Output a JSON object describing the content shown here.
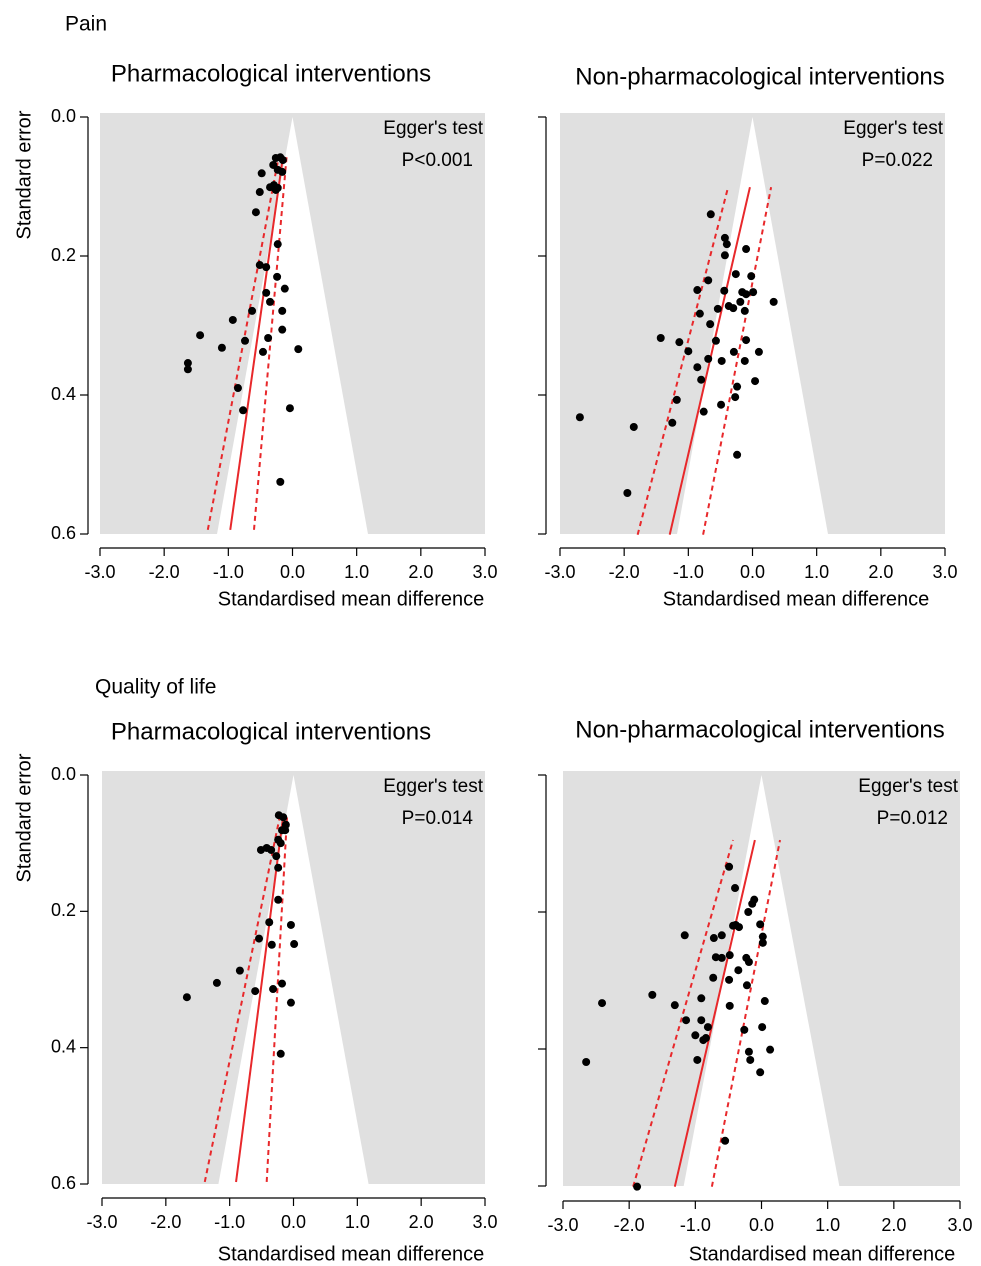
{
  "sections": [
    "Pain",
    "Quality of life"
  ],
  "chart_data": [
    {
      "type": "funnel",
      "section": 0,
      "title": "Pharmacological interventions",
      "xlabel": "Standardised mean difference",
      "ylabel": "Standard error",
      "annotations": [
        "Egger's test",
        "P<0.001"
      ],
      "xlim": [
        -3,
        3
      ],
      "ylim": [
        0,
        0.6
      ],
      "y_inverted": true,
      "ytick_labels": true,
      "xticks": [
        {
          "value": -3,
          "label": "-3.0"
        },
        {
          "value": -2,
          "label": "-2.0"
        },
        {
          "value": -1,
          "label": "-1.0"
        },
        {
          "value": 0,
          "label": "0.0"
        },
        {
          "value": 1,
          "label": "1.0"
        },
        {
          "value": 2,
          "label": "2.0"
        },
        {
          "value": 3,
          "label": "3.0"
        }
      ],
      "yticks": [
        {
          "value": 0,
          "label": "0.0"
        },
        0.2,
        0.4,
        0.6
      ],
      "funnel_center": 0,
      "funnel_z": 1.96,
      "region_color": "#e0e0e0",
      "point_color": "#000000",
      "line_color": "#e8282b",
      "x": [
        -0.26,
        -0.19,
        -0.15,
        -0.3,
        -0.23,
        -0.16,
        -0.48,
        -0.35,
        -0.29,
        -0.23,
        -0.51,
        -0.26,
        -0.57,
        -0.23,
        -0.51,
        -0.41,
        -0.24,
        -0.12,
        -0.41,
        -0.35,
        -0.63,
        -0.16,
        -0.93,
        -0.16,
        -1.44,
        -0.38,
        -0.74,
        -1.1,
        -0.46,
        0.09,
        -1.63,
        -1.63,
        -0.85,
        -0.04,
        -0.77,
        -0.19
      ],
      "y": [
        0.059,
        0.058,
        0.062,
        0.069,
        0.076,
        0.079,
        0.081,
        0.101,
        0.098,
        0.102,
        0.108,
        0.105,
        0.137,
        0.183,
        0.213,
        0.216,
        0.23,
        0.247,
        0.253,
        0.266,
        0.279,
        0.279,
        0.292,
        0.306,
        0.314,
        0.318,
        0.322,
        0.332,
        0.338,
        0.334,
        0.354,
        0.363,
        0.39,
        0.419,
        0.422,
        0.525
      ],
      "fit": {
        "x": [
          -0.97,
          -0.15
        ],
        "y": [
          0.594,
          0.058
        ]
      },
      "ci_lower": {
        "x": [
          -1.32,
          -0.21
        ],
        "y": [
          0.594,
          0.055
        ]
      },
      "ci_upper": {
        "x": [
          -0.6,
          -0.09
        ],
        "y": [
          0.594,
          0.055
        ]
      }
    },
    {
      "type": "funnel",
      "section": 0,
      "title": "Non-pharmacological interventions",
      "xlabel": "Standardised mean difference",
      "annotations": [
        "Egger's test",
        "P=0.022"
      ],
      "xlim": [
        -3,
        3
      ],
      "ylim": [
        0,
        0.6
      ],
      "y_inverted": true,
      "ytick_labels": false,
      "xticks": [
        {
          "value": -3,
          "label": "-3.0"
        },
        {
          "value": -2,
          "label": "-2.0"
        },
        {
          "value": -1,
          "label": "-1.0"
        },
        {
          "value": 0,
          "label": "0.0"
        },
        {
          "value": 1,
          "label": "1.0"
        },
        {
          "value": 2,
          "label": "2.0"
        },
        {
          "value": 3,
          "label": "3.0"
        }
      ],
      "yticks": [
        0,
        0.2,
        0.4,
        0.6
      ],
      "funnel_center": 0,
      "funnel_z": 1.96,
      "region_color": "#e0e0e0",
      "point_color": "#000000",
      "line_color": "#e8282b",
      "x": [
        -0.65,
        -0.43,
        -0.4,
        -0.43,
        -0.69,
        -0.1,
        -0.26,
        -0.44,
        -0.86,
        -0.16,
        -0.1,
        -0.82,
        -0.3,
        -0.54,
        -0.19,
        0.01,
        -0.02,
        0.33,
        -0.37,
        -0.66,
        -0.12,
        -1.43,
        -1.0,
        -1.14,
        -0.57,
        -0.1,
        -0.29,
        0.1,
        -0.69,
        -0.48,
        -0.12,
        -0.86,
        -0.24,
        0.04,
        -0.8,
        -0.27,
        -1.18,
        -0.76,
        -0.49,
        -1.85,
        -1.25,
        -0.24,
        -2.69,
        -1.95
      ],
      "y": [
        0.14,
        0.174,
        0.183,
        0.199,
        0.235,
        0.19,
        0.226,
        0.25,
        0.249,
        0.252,
        0.255,
        0.283,
        0.275,
        0.276,
        0.266,
        0.252,
        0.229,
        0.266,
        0.272,
        0.298,
        0.279,
        0.318,
        0.337,
        0.324,
        0.322,
        0.321,
        0.338,
        0.338,
        0.348,
        0.351,
        0.351,
        0.36,
        0.388,
        0.38,
        0.378,
        0.403,
        0.407,
        0.424,
        0.414,
        0.446,
        0.44,
        0.486,
        0.432,
        0.541
      ],
      "fit": {
        "x": [
          -1.29,
          -0.04
        ],
        "y": [
          0.601,
          0.101
        ]
      },
      "ci_lower": {
        "x": [
          -1.79,
          -0.38
        ],
        "y": [
          0.601,
          0.101
        ]
      },
      "ci_upper": {
        "x": [
          -0.77,
          0.29
        ],
        "y": [
          0.601,
          0.101
        ]
      }
    },
    {
      "type": "funnel",
      "section": 1,
      "title": "Pharmacological interventions",
      "xlabel": "Standardised mean difference",
      "ylabel": "Standard error",
      "annotations": [
        "Egger's test",
        "P=0.014"
      ],
      "xlim": [
        -3,
        3
      ],
      "ylim": [
        0,
        0.6
      ],
      "y_inverted": true,
      "ytick_labels": true,
      "xticks": [
        {
          "value": -3,
          "label": "-3.0"
        },
        {
          "value": -2,
          "label": "-2.0"
        },
        {
          "value": -1,
          "label": "-1.0"
        },
        {
          "value": 0,
          "label": "0.0"
        },
        {
          "value": 1,
          "label": "1.0"
        },
        {
          "value": 2,
          "label": "2.0"
        },
        {
          "value": 3,
          "label": "3.0"
        }
      ],
      "yticks": [
        {
          "value": 0,
          "label": "0.0"
        },
        0.2,
        0.4,
        0.6
      ],
      "funnel_center": 0,
      "funnel_z": 1.96,
      "region_color": "#e0e0e0",
      "point_color": "#000000",
      "line_color": "#e8282b",
      "x": [
        -0.23,
        -0.16,
        -0.12,
        -0.18,
        -0.13,
        -0.24,
        -0.2,
        -0.51,
        -0.42,
        -0.35,
        -0.27,
        -0.24,
        -0.24,
        -0.38,
        -0.04,
        -0.54,
        0.01,
        -0.34,
        -0.84,
        -0.18,
        -1.2,
        -0.32,
        -0.6,
        -1.67,
        -0.04,
        -0.2
      ],
      "y": [
        0.059,
        0.062,
        0.073,
        0.081,
        0.081,
        0.095,
        0.1,
        0.11,
        0.107,
        0.11,
        0.119,
        0.136,
        0.183,
        0.216,
        0.22,
        0.24,
        0.248,
        0.249,
        0.287,
        0.306,
        0.305,
        0.314,
        0.317,
        0.326,
        0.334,
        0.409
      ],
      "fit": {
        "x": [
          -0.9,
          -0.16
        ],
        "y": [
          0.597,
          0.059
        ]
      },
      "ci_lower": {
        "x": [
          -1.39,
          -0.21
        ],
        "y": [
          0.597,
          0.059
        ]
      },
      "ci_upper": {
        "x": [
          -0.42,
          -0.1
        ],
        "y": [
          0.597,
          0.059
        ]
      }
    },
    {
      "type": "funnel",
      "section": 1,
      "title": "Non-pharmacological interventions",
      "xlabel": "Standardised mean difference",
      "annotations": [
        "Egger's test",
        "P=0.012"
      ],
      "xlim": [
        -3,
        3
      ],
      "ylim": [
        0,
        0.6
      ],
      "y_inverted": true,
      "ytick_labels": false,
      "xticks": [
        {
          "value": -3,
          "label": "-3.0"
        },
        {
          "value": -2,
          "label": "-2.0"
        },
        {
          "value": -1,
          "label": "-1.0"
        },
        {
          "value": 0,
          "label": "0.0"
        },
        {
          "value": 1,
          "label": "1.0"
        },
        {
          "value": 2,
          "label": "2.0"
        },
        {
          "value": 3,
          "label": "3.0"
        }
      ],
      "yticks": [
        0,
        0.2,
        0.4,
        0.6
      ],
      "funnel_center": 0,
      "funnel_z": 1.96,
      "region_color": "#e0e0e0",
      "point_color": "#000000",
      "line_color": "#e8282b",
      "x": [
        -0.49,
        -0.4,
        -0.11,
        -0.14,
        -0.72,
        -0.39,
        -0.34,
        -0.2,
        -0.43,
        -0.02,
        0.02,
        0.02,
        -1.16,
        -0.6,
        -0.48,
        -0.69,
        -0.6,
        -0.23,
        -0.19,
        -0.35,
        0.05,
        -0.22,
        -0.49,
        -0.73,
        -1.65,
        -1.31,
        -0.91,
        -0.48,
        -1.14,
        -0.91,
        -0.81,
        -0.26,
        -1.0,
        -0.84,
        0.01,
        -0.88,
        -0.97,
        -0.19,
        0.13,
        -0.17,
        -0.02,
        -2.65,
        -2.41,
        -0.55,
        -1.88
      ],
      "y": [
        0.134,
        0.165,
        0.182,
        0.188,
        0.238,
        0.219,
        0.222,
        0.2,
        0.22,
        0.218,
        0.236,
        0.245,
        0.234,
        0.234,
        0.263,
        0.266,
        0.267,
        0.267,
        0.273,
        0.285,
        0.33,
        0.307,
        0.299,
        0.296,
        0.321,
        0.336,
        0.326,
        0.337,
        0.358,
        0.358,
        0.368,
        0.372,
        0.38,
        0.384,
        0.368,
        0.387,
        0.416,
        0.404,
        0.401,
        0.416,
        0.434,
        0.419,
        0.333,
        0.534,
        0.601
      ],
      "fit": {
        "x": [
          -1.31,
          -0.1
        ],
        "y": [
          0.601,
          0.095
        ]
      },
      "ci_lower": {
        "x": [
          -1.94,
          -0.43
        ],
        "y": [
          0.601,
          0.095
        ]
      },
      "ci_upper": {
        "x": [
          -0.75,
          0.28
        ],
        "y": [
          0.601,
          0.095
        ]
      }
    }
  ]
}
